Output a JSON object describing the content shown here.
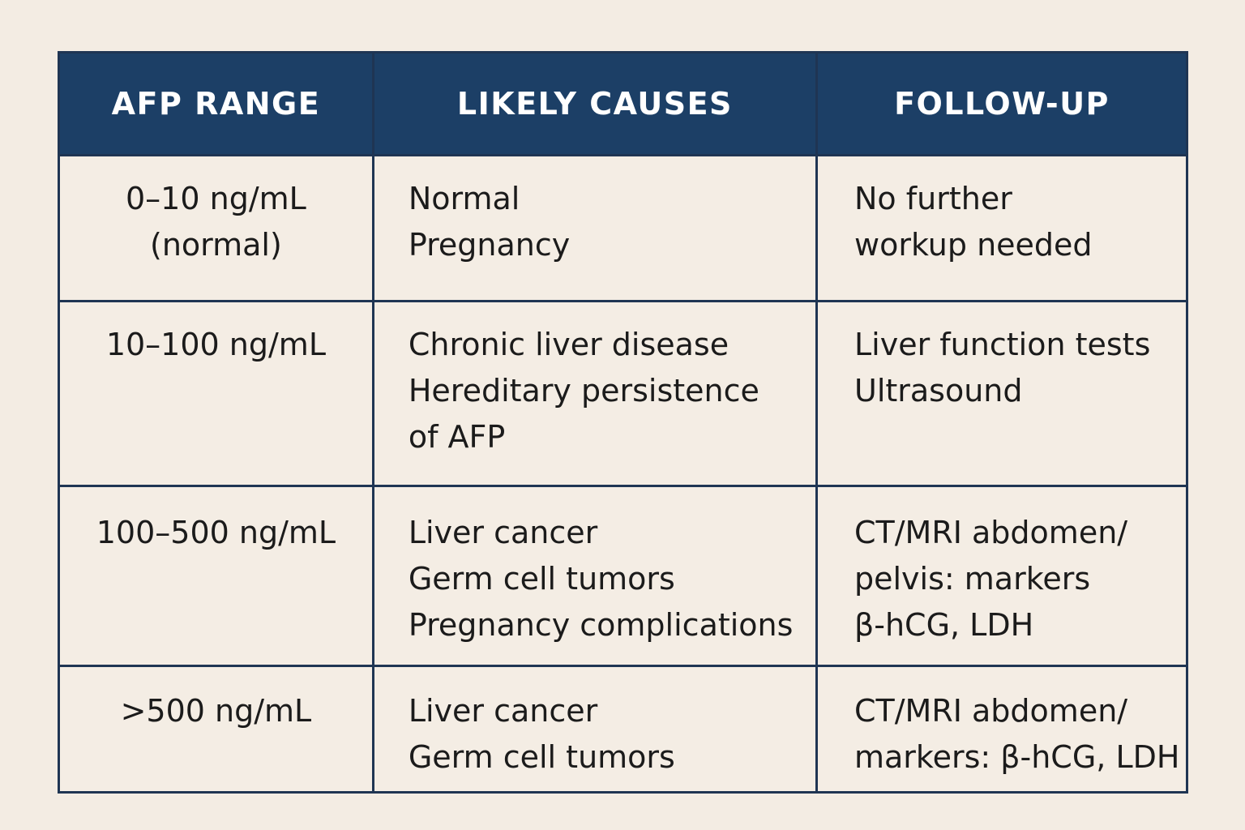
{
  "table": {
    "headers": [
      "AFP RANGE",
      "LIKELY CAUSES",
      "FOLLOW-UP"
    ],
    "rows": [
      {
        "range": [
          "0–10 ng/mL",
          "(normal)"
        ],
        "causes": [
          "Normal",
          "Pregnancy"
        ],
        "follow_up": [
          "No further",
          "workup needed"
        ]
      },
      {
        "range": [
          "10–100 ng/mL"
        ],
        "causes": [
          "Chronic liver disease",
          "Hereditary persistence",
          "of AFP"
        ],
        "follow_up": [
          "Liver function tests",
          "Ultrasound"
        ]
      },
      {
        "range": [
          "100–500 ng/mL"
        ],
        "causes": [
          "Liver cancer",
          "Germ cell tumors",
          "Pregnancy complications"
        ],
        "follow_up": [
          "CT/MRI abdomen/",
          "pelvis: markers",
          "β-hCG, LDH"
        ]
      },
      {
        "range": [
          ">500 ng/mL"
        ],
        "causes": [
          "Liver cancer",
          "Germ cell tumors"
        ],
        "follow_up": [
          "CT/MRI abdomen/",
          "markers: β-hCG, LDH"
        ]
      }
    ]
  },
  "colors": {
    "background": "#f3ece3",
    "header_fill": "#1c3f66",
    "header_text": "#ffffff",
    "border": "#1f3553",
    "body_text": "#1b1b1b"
  }
}
